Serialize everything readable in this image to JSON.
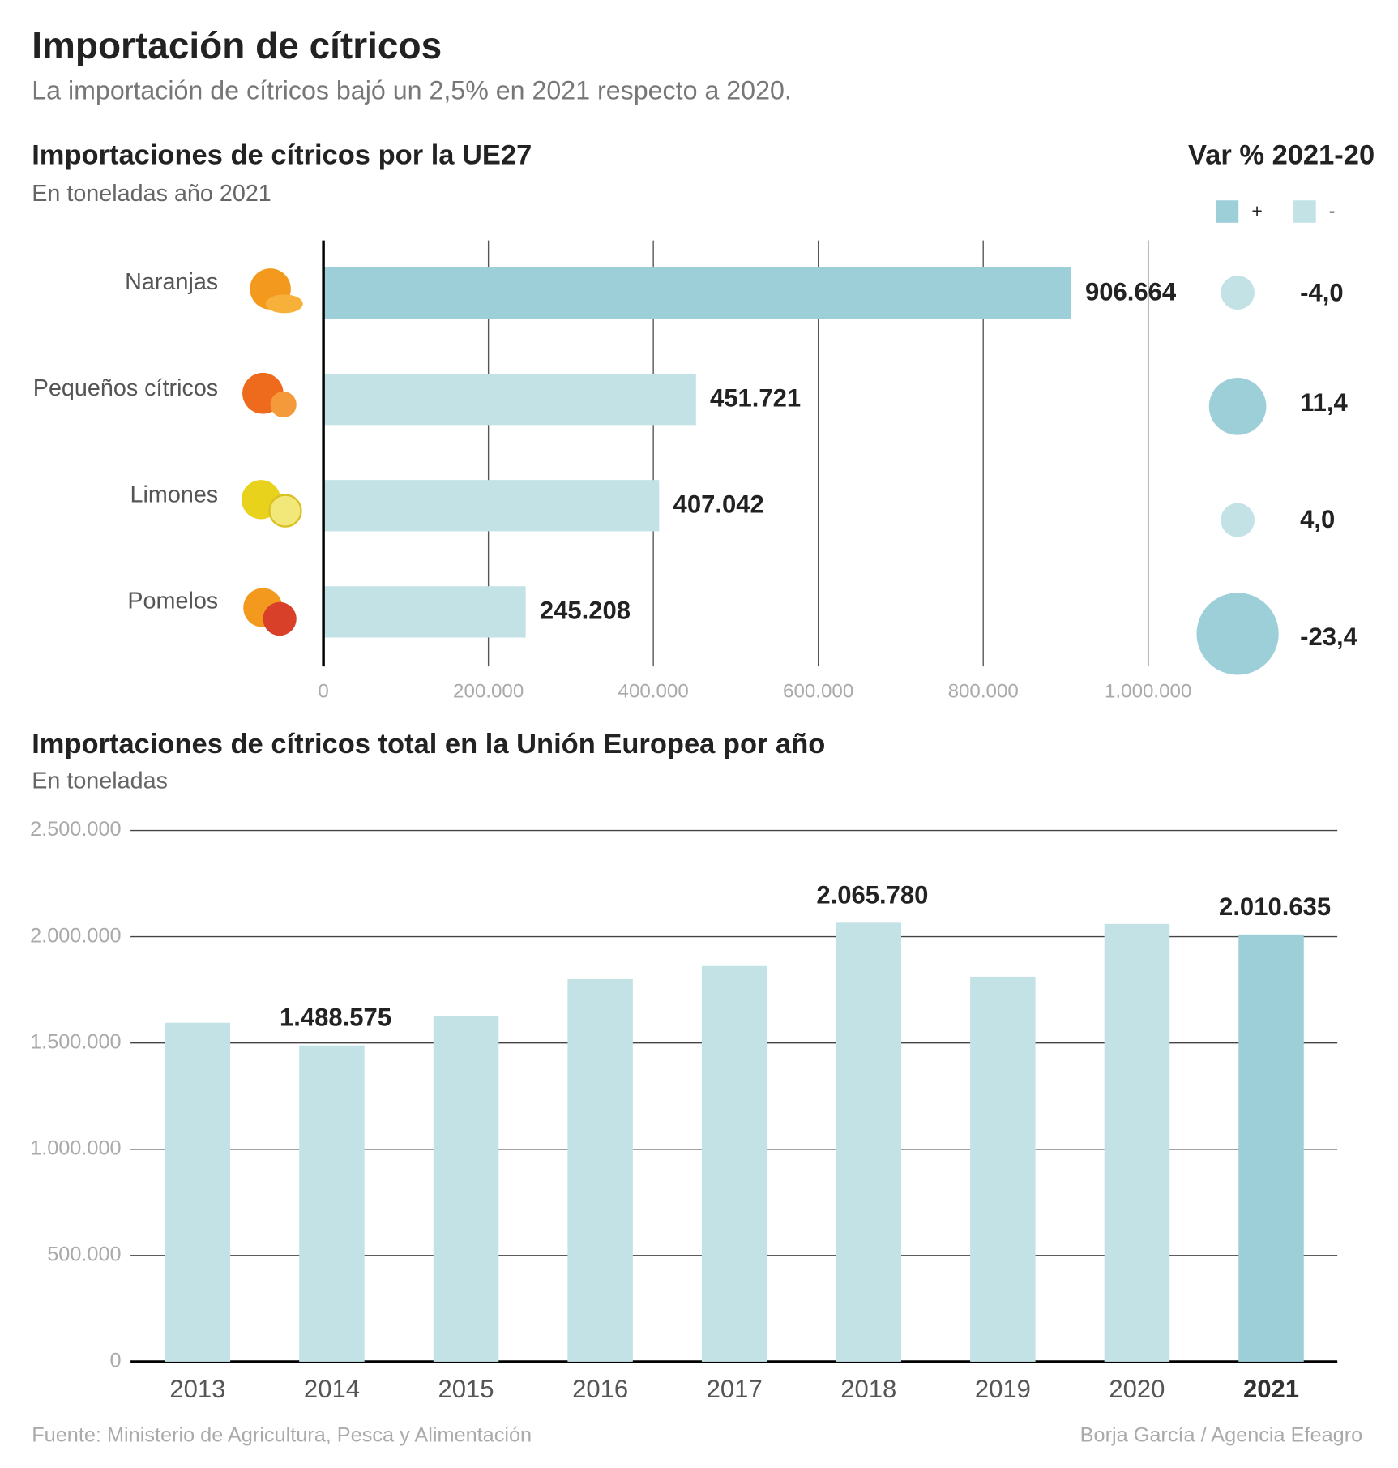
{
  "header": {
    "title": "Importación de cítricos",
    "subtitle": "La importación de cítricos bajó un 2,5% en 2021 respecto a 2020."
  },
  "chart_data": [
    {
      "type": "hbar",
      "title": "Importaciones de cítricos por la UE27",
      "subtitle": "En toneladas año 2021",
      "categories": [
        "Naranjas",
        "Pequeños cítricos",
        "Limones",
        "Pomelos"
      ],
      "values": [
        906664,
        451721,
        407042,
        245208
      ],
      "value_labels": [
        "906.664",
        "451.721",
        "407.042",
        "245.208"
      ],
      "colors": [
        "#9dcfd9",
        "#c2e2e6",
        "#c2e2e6",
        "#c2e2e6"
      ],
      "xlim": [
        0,
        1000000
      ],
      "xticks": [
        0,
        {
          "value": 200000,
          "label": "200.000"
        },
        {
          "value": 400000,
          "label": "400.000"
        },
        {
          "value": 600000,
          "label": "600.000"
        },
        {
          "value": 800000,
          "label": "800.000"
        },
        {
          "value": 1000000,
          "label": "1.000.000"
        }
      ],
      "grid": true,
      "var_title": "Var % 2021-20",
      "var_values": [
        -4.0,
        11.4,
        4.0,
        -23.4
      ],
      "var_labels": [
        "-4,0",
        "11,4",
        "4,0",
        "-23,4"
      ],
      "var_colors": [
        "#c2e2e6",
        "#9dcfd9",
        "#c2e2e6",
        "#9dcfd9"
      ],
      "legend": [
        {
          "name": "+",
          "color": "#9dcfd9"
        },
        {
          "name": "-",
          "color": "#c2e2e6"
        }
      ]
    },
    {
      "type": "bar",
      "title": "Importaciones de cítricos total en la Unión Europea por año",
      "subtitle": "En toneladas",
      "categories": [
        "2013",
        "2014",
        "2015",
        "2016",
        "2017",
        "2018",
        "2019",
        "2020",
        "2021"
      ],
      "values": [
        1595000,
        1488575,
        1625000,
        1800000,
        1862000,
        2065780,
        1812000,
        2060000,
        2010635
      ],
      "value_labels": [
        null,
        "1.488.575",
        null,
        null,
        null,
        "2.065.780",
        null,
        null,
        "2.010.635"
      ],
      "colors": [
        "#c2e2e6",
        "#c2e2e6",
        "#c2e2e6",
        "#c2e2e6",
        "#c2e2e6",
        "#c2e2e6",
        "#c2e2e6",
        "#c2e2e6",
        "#9dcfd9"
      ],
      "ylim": [
        0,
        2500000
      ],
      "yticks": [
        0,
        {
          "value": 500000,
          "label": "500.000"
        },
        {
          "value": 1000000,
          "label": "1.000.000"
        },
        {
          "value": 1500000,
          "label": "1.500.000"
        },
        {
          "value": 2000000,
          "label": "2.000.000"
        },
        {
          "value": 2500000,
          "label": "2.500.000"
        }
      ],
      "grid": true
    }
  ],
  "footer": {
    "source": "Fuente: Ministerio de Agricultura, Pesca y Alimentación",
    "credit": "Borja García / Agencia Efeagro"
  }
}
